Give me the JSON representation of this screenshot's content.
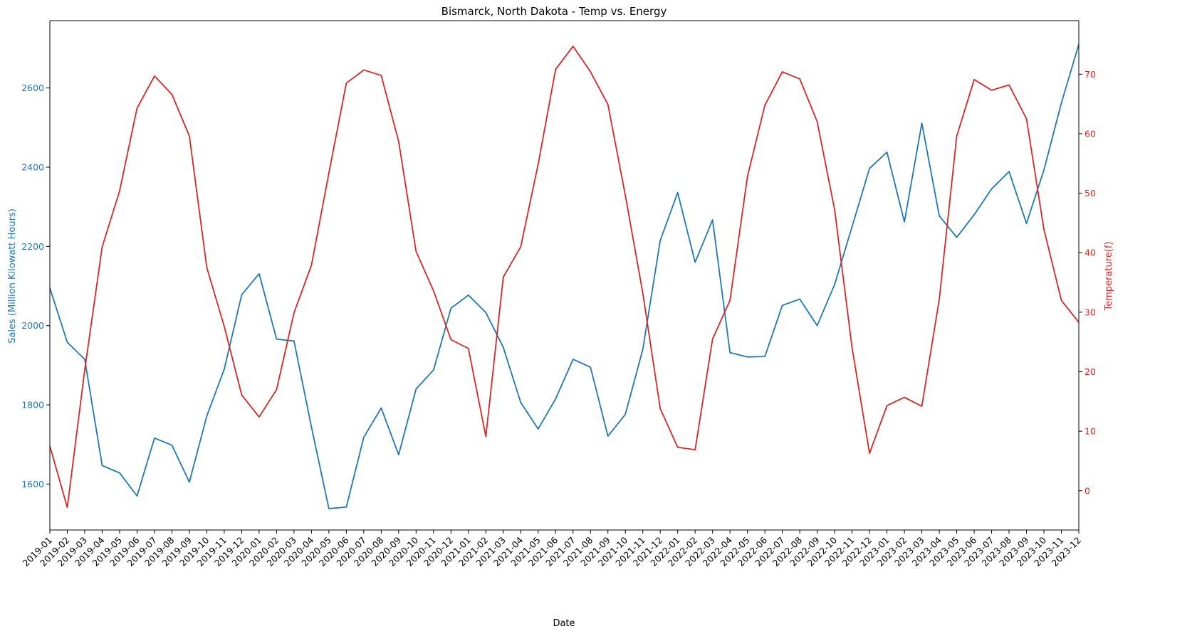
{
  "chart_data": {
    "type": "line",
    "title": "Bismarck, North Dakota - Temp vs. Energy",
    "xlabel": "Date",
    "ylabel_left": "Sales (Million Kilowatt Hours)",
    "ylabel_right": "Temperature(f)",
    "colors": {
      "sales": "#1f77b4",
      "temp": "#d62728"
    },
    "ylim_left": [
      1484,
      2770
    ],
    "yticks_left": [
      1600,
      1800,
      2000,
      2200,
      2400,
      2600
    ],
    "ylim_right": [
      -6.6,
      79
    ],
    "yticks_right": [
      0,
      10,
      20,
      30,
      40,
      50,
      60,
      70
    ],
    "x": [
      "2019-01",
      "2019-02",
      "2019-03",
      "2019-04",
      "2019-05",
      "2019-06",
      "2019-07",
      "2019-08",
      "2019-09",
      "2019-10",
      "2019-11",
      "2019-12",
      "2020-01",
      "2020-02",
      "2020-03",
      "2020-04",
      "2020-05",
      "2020-06",
      "2020-07",
      "2020-08",
      "2020-09",
      "2020-10",
      "2020-11",
      "2020-12",
      "2021-01",
      "2021-02",
      "2021-03",
      "2021-04",
      "2021-05",
      "2021-06",
      "2021-07",
      "2021-08",
      "2021-09",
      "2021-10",
      "2021-11",
      "2021-12",
      "2022-01",
      "2022-02",
      "2022-03",
      "2022-04",
      "2022-05",
      "2022-06",
      "2022-07",
      "2022-08",
      "2022-09",
      "2022-10",
      "2022-11",
      "2022-12",
      "2023-01",
      "2023-02",
      "2023-03",
      "2023-04",
      "2023-05",
      "2023-06",
      "2023-07",
      "2023-08",
      "2023-09",
      "2023-10",
      "2023-11",
      "2023-12"
    ],
    "series": [
      {
        "key": "sales",
        "axis": "left",
        "values": [
          2095,
          1958,
          1915,
          1647,
          1628,
          1570,
          1716,
          1698,
          1605,
          1772,
          1890,
          2078,
          2131,
          1966,
          1961,
          1744,
          1538,
          1542,
          1718,
          1792,
          1674,
          1840,
          1888,
          2044,
          2077,
          2033,
          1945,
          1806,
          1739,
          1815,
          1915,
          1895,
          1721,
          1776,
          1940,
          2215,
          2336,
          2160,
          2267,
          1932,
          1921,
          1922,
          2051,
          2067,
          2000,
          2104,
          2250,
          2397,
          2438,
          2262,
          2511,
          2277,
          2223,
          2280,
          2345,
          2389,
          2258,
          2393,
          2562,
          2710
        ]
      },
      {
        "key": "temp",
        "axis": "right",
        "values": [
          7.5,
          -2.8,
          20.3,
          41.0,
          50.4,
          64.3,
          69.7,
          66.6,
          59.6,
          37.5,
          27.6,
          16.1,
          12.4,
          17.0,
          29.9,
          37.9,
          53.4,
          68.5,
          70.7,
          69.8,
          58.7,
          40.2,
          33.6,
          25.4,
          23.9,
          9.1,
          35.9,
          41.0,
          54.9,
          70.8,
          74.7,
          70.4,
          64.9,
          49.6,
          33.2,
          13.8,
          7.3,
          6.9,
          25.5,
          32.0,
          52.8,
          64.8,
          70.4,
          69.2,
          62.0,
          47.2,
          24.0,
          6.3,
          14.3,
          15.7,
          14.2,
          32.2,
          59.6,
          69.1,
          67.3,
          68.2,
          62.5,
          43.9,
          32.0,
          28.3
        ]
      }
    ]
  }
}
